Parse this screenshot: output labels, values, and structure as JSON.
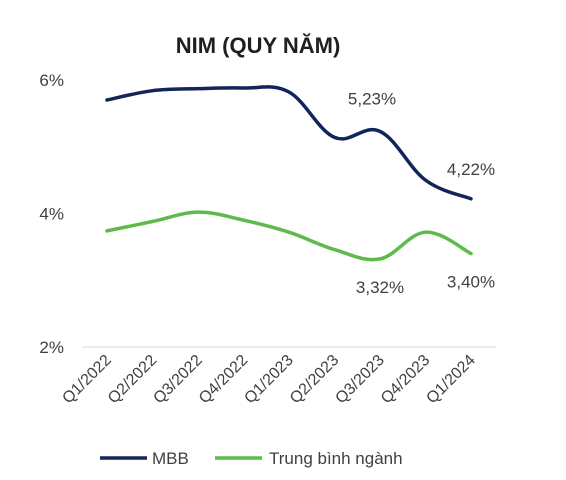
{
  "chart_data": {
    "type": "line",
    "title": "NIM (QUY NĂM)",
    "xlabel": "",
    "ylabel": "",
    "categories": [
      "Q1/2022",
      "Q2/2022",
      "Q3/2022",
      "Q4/2022",
      "Q1/2023",
      "Q2/2023",
      "Q3/2023",
      "Q4/2023",
      "Q1/2024"
    ],
    "ylim": [
      2,
      6
    ],
    "yticks": [
      2,
      4,
      6
    ],
    "ytick_labels": [
      "2%",
      "4%",
      "6%"
    ],
    "grid": false,
    "legend_position": "bottom",
    "series": [
      {
        "name": "MBB",
        "color": "#12245a",
        "values": [
          5.7,
          5.84,
          5.87,
          5.88,
          5.82,
          5.14,
          5.23,
          4.5,
          4.22
        ],
        "data_labels": [
          {
            "index": 6,
            "text": "5,23%"
          },
          {
            "index": 8,
            "text": "4,22%"
          }
        ]
      },
      {
        "name": "Trung bình ngành",
        "color": "#5dbb4c",
        "values": [
          3.74,
          3.88,
          4.02,
          3.9,
          3.72,
          3.46,
          3.32,
          3.72,
          3.4
        ],
        "data_labels": [
          {
            "index": 6,
            "text": "3,32%"
          },
          {
            "index": 8,
            "text": "3,40%"
          }
        ]
      }
    ]
  }
}
